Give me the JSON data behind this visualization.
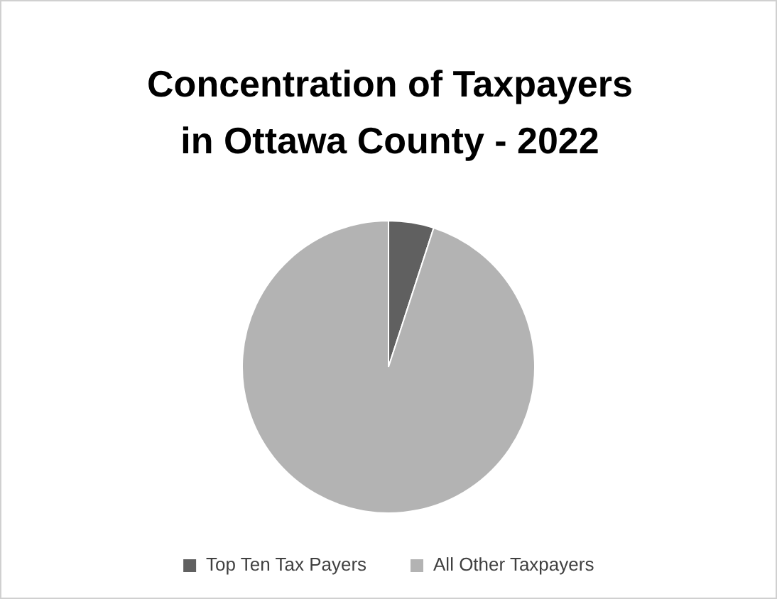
{
  "chart_data": {
    "type": "pie",
    "title": "Concentration of Taxpayers in Ottawa County - 2022",
    "categories": [
      "Top Ten Tax Payers",
      "All Other Taxpayers"
    ],
    "values": [
      5,
      95
    ],
    "colors": [
      "#606060",
      "#b3b3b3"
    ],
    "legend": "bottom"
  }
}
